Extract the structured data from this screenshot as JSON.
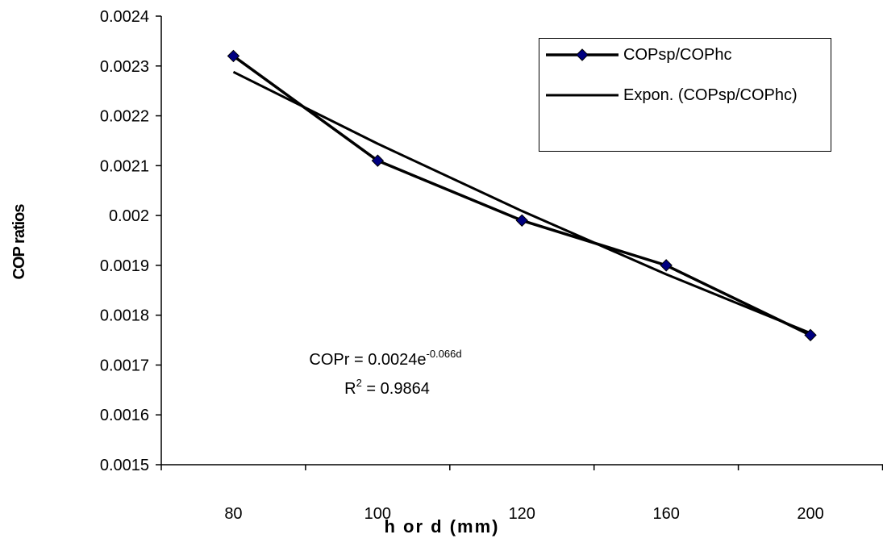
{
  "chart_data": {
    "type": "line",
    "x_label": "h or d (mm)",
    "y_label": "COP ratios",
    "categories": [
      "80",
      "100",
      "120",
      "160",
      "200"
    ],
    "series": [
      {
        "name": "COPsp/COPhc",
        "color": "#000080",
        "values": [
          0.00232,
          0.00211,
          0.00199,
          0.0019,
          0.00176
        ]
      },
      {
        "name": "Expon. (COPsp/COPhc)",
        "color": "#000000",
        "values": [
          0.002288,
          0.002144,
          0.002009,
          0.001882,
          0.001764
        ]
      }
    ],
    "ylim": [
      0.0015,
      0.0024
    ],
    "yticks": [
      0.0015,
      0.0016,
      0.0017,
      0.0018,
      0.0019,
      0.002,
      0.0021,
      0.0022,
      0.0023,
      0.0024
    ],
    "annotation": {
      "equation": "COPr = 0.0024e",
      "exponent": "-0.066d",
      "r2_base": "R",
      "r2_power": "2",
      "r2_rest": " = 0.9864"
    },
    "grid": false,
    "legend_position": "upper right"
  }
}
